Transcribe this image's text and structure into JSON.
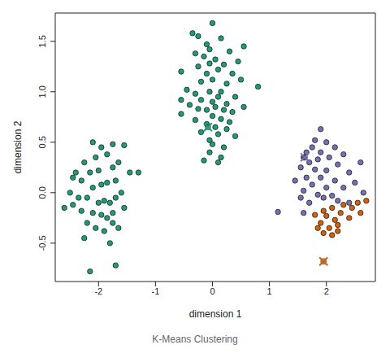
{
  "chart_data": {
    "type": "scatter",
    "caption": "K-Means Clustering",
    "x_label": "dimension 1",
    "y_label": "dimension 2",
    "xlim": [
      -2.76,
      2.86
    ],
    "ylim": [
      -0.88,
      1.78
    ],
    "xticks": [
      -2,
      -1,
      0,
      1,
      2
    ],
    "yticks": [
      -0.5,
      {
        "value": 0,
        "label": "0.0"
      },
      0.5,
      {
        "value": 1,
        "label": "1.0"
      },
      1.5
    ],
    "grid": false,
    "series": [
      {
        "color": "#1B9E77",
        "marker": "circle",
        "x": [
          -2.1,
          -1.95,
          -1.75,
          -1.55,
          -2.05,
          -1.85,
          -2.25,
          -2.4,
          -2.45,
          -2.3,
          -2.15,
          -2.0,
          -1.75,
          -1.65,
          -1.45,
          -1.3,
          -2.1,
          -1.95,
          -1.85,
          -1.7,
          -2.5,
          -2.35,
          -2.2,
          -2.0,
          -1.9,
          -1.8,
          -1.7,
          -1.6,
          -2.6,
          -2.45,
          -2.3,
          -2.1,
          -1.95,
          -1.85,
          -1.75,
          -1.55,
          -2.2,
          -2.05,
          -1.9,
          -1.75,
          -2.25,
          -1.8,
          -1.65,
          -2.15,
          -1.7,
          0.0,
          -0.35,
          -0.25,
          0.15,
          -0.1,
          0.55,
          -0.05,
          0.3,
          -0.3,
          -0.15,
          0.05,
          0.45,
          -0.05,
          0.2,
          -0.25,
          0.1,
          -0.55,
          -0.1,
          0.35,
          0.0,
          0.5,
          -0.2,
          0.25,
          0.8,
          -0.45,
          -0.05,
          0.15,
          -0.3,
          0.1,
          0.4,
          -0.55,
          -0.2,
          0.0,
          0.25,
          -0.4,
          0.05,
          0.55,
          -0.25,
          -0.1,
          0.2,
          0.35,
          -0.55,
          0.0,
          0.15,
          -0.3,
          0.3,
          -0.1,
          0.05,
          0.25,
          -0.2,
          0.1,
          0.4,
          -0.05,
          0.0,
          0.2,
          -0.05,
          0.15,
          -0.15,
          0.1
        ],
        "y": [
          0.5,
          0.45,
          0.48,
          0.47,
          0.35,
          0.38,
          0.3,
          0.2,
          0.15,
          0.12,
          0.2,
          0.22,
          0.25,
          0.3,
          0.2,
          0.2,
          0.05,
          0.08,
          0.1,
          0.12,
          0.0,
          -0.05,
          -0.05,
          -0.1,
          -0.08,
          -0.1,
          -0.05,
          0.0,
          -0.15,
          -0.12,
          -0.18,
          -0.2,
          -0.22,
          -0.25,
          -0.2,
          -0.15,
          -0.3,
          -0.35,
          -0.38,
          -0.3,
          -0.45,
          -0.5,
          -0.35,
          -0.78,
          -0.72,
          1.68,
          1.58,
          1.55,
          1.53,
          1.47,
          1.45,
          1.42,
          1.4,
          1.38,
          1.35,
          1.32,
          1.3,
          1.28,
          1.27,
          1.25,
          1.22,
          1.2,
          1.18,
          1.18,
          1.12,
          1.12,
          1.1,
          1.08,
          1.05,
          1.02,
          1.0,
          1.0,
          0.98,
          0.95,
          0.95,
          0.92,
          0.92,
          0.9,
          0.88,
          0.87,
          0.85,
          0.85,
          0.83,
          0.82,
          0.82,
          0.8,
          0.78,
          0.76,
          0.73,
          0.72,
          0.7,
          0.68,
          0.65,
          0.63,
          0.6,
          0.58,
          0.56,
          0.52,
          0.48,
          0.45,
          0.4,
          0.35,
          0.32,
          0.3
        ]
      },
      {
        "color": "#7570B3",
        "marker": "circle",
        "x": [
          1.9,
          1.8,
          2.0,
          1.75,
          2.15,
          1.65,
          1.9,
          2.3,
          1.6,
          1.85,
          2.05,
          1.7,
          2.2,
          2.6,
          1.55,
          1.8,
          2.0,
          2.4,
          1.65,
          1.9,
          2.15,
          1.45,
          2.5,
          1.75,
          2.0,
          2.3,
          1.6,
          1.85,
          2.1,
          2.65,
          1.55,
          1.95,
          2.2,
          1.7,
          2.4,
          1.15,
          1.6
        ],
        "y": [
          0.63,
          0.52,
          0.5,
          0.45,
          0.45,
          0.4,
          0.4,
          0.38,
          0.35,
          0.33,
          0.35,
          0.3,
          0.28,
          0.3,
          0.25,
          0.23,
          0.22,
          0.2,
          0.15,
          0.15,
          0.12,
          0.12,
          0.1,
          0.08,
          0.05,
          0.05,
          0.02,
          -0.02,
          -0.03,
          0.0,
          -0.05,
          -0.05,
          -0.08,
          -0.1,
          -0.1,
          -0.19,
          -0.2
        ]
      },
      {
        "color": "#D95F02",
        "marker": "circle",
        "x": [
          2.7,
          2.55,
          2.3,
          2.45,
          2.1,
          1.95,
          2.6,
          2.25,
          2.0,
          1.8,
          2.4,
          2.15,
          1.9,
          2.2,
          2.05,
          1.85,
          2.2,
          1.95,
          2.1
        ],
        "y": [
          -0.08,
          -0.1,
          -0.12,
          -0.15,
          -0.15,
          -0.18,
          -0.2,
          -0.2,
          -0.23,
          -0.22,
          -0.25,
          -0.27,
          -0.3,
          -0.32,
          -0.35,
          -0.35,
          -0.38,
          -0.4,
          -0.42
        ]
      },
      {
        "color": "#1B9E77",
        "marker": "x",
        "x": [
          -0.08
        ],
        "y": [
          0.65
        ]
      },
      {
        "color": "#7570B3",
        "marker": "x",
        "x": [
          1.62
        ],
        "y": [
          0.35
        ]
      },
      {
        "color": "#D95F02",
        "marker": "x",
        "x": [
          1.95
        ],
        "y": [
          -0.68
        ]
      }
    ]
  }
}
